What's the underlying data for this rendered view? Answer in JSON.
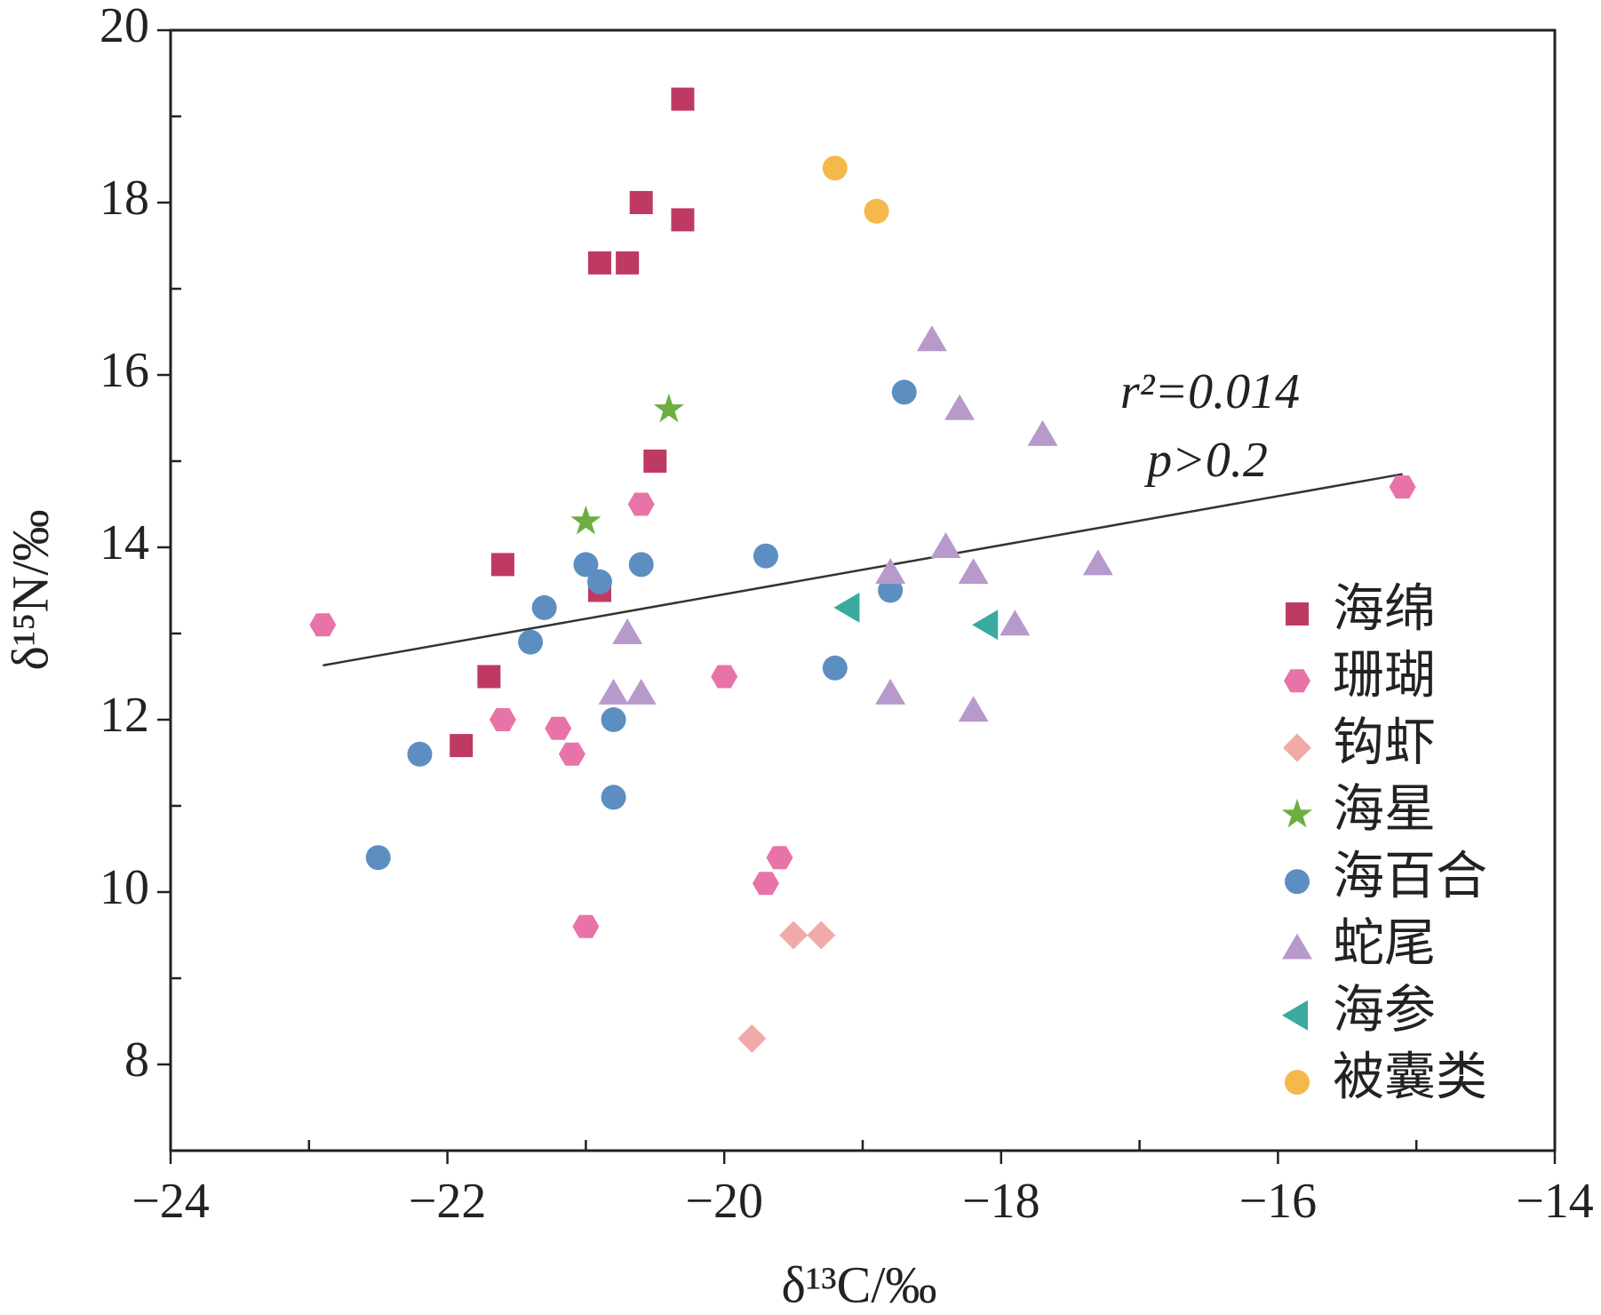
{
  "chart_data": {
    "type": "scatter",
    "xlabel": "δ¹³C/‰",
    "ylabel": "δ¹⁵N/‰",
    "xlim": [
      -24,
      -14
    ],
    "ylim": [
      7,
      20
    ],
    "xticks": [
      {
        "value": -24,
        "label": "−24"
      },
      {
        "value": -22,
        "label": "−22"
      },
      {
        "value": -20,
        "label": "−20"
      },
      {
        "value": -18,
        "label": "−18"
      },
      {
        "value": -16,
        "label": "−16"
      },
      {
        "value": -14,
        "label": "−14"
      }
    ],
    "yticks": [
      8,
      10,
      12,
      14,
      16,
      18,
      20
    ],
    "xminorticks": [
      -23,
      -21,
      -19,
      -17,
      -15
    ],
    "yminorticks": [
      9,
      11,
      13,
      15,
      17,
      19
    ],
    "annotations": [
      "r²=0.014",
      "p>0.2"
    ],
    "trendline": {
      "color": "#333333",
      "x": [
        -22.9,
        -15.1
      ],
      "y": [
        12.63,
        14.85
      ]
    },
    "series": [
      {
        "name": "海绵",
        "color": "#bf3a63",
        "marker": "square",
        "x": [
          -20.3,
          -20.6,
          -20.3,
          -20.9,
          -20.7,
          -20.5,
          -21.6,
          -20.9,
          -21.7,
          -21.9
        ],
        "y": [
          19.2,
          18.0,
          17.8,
          17.3,
          17.3,
          15.0,
          13.8,
          13.5,
          12.5,
          11.7
        ]
      },
      {
        "name": "珊瑚",
        "color": "#e873a8",
        "marker": "hexagon",
        "x": [
          -22.9,
          -20.6,
          -21.6,
          -21.2,
          -21.1,
          -20.0,
          -19.6,
          -19.7,
          -21.0,
          -15.1
        ],
        "y": [
          13.1,
          14.5,
          12.0,
          11.9,
          11.6,
          12.5,
          10.4,
          10.1,
          9.6,
          14.7
        ]
      },
      {
        "name": "钩虾",
        "color": "#f2aaa8",
        "marker": "diamond",
        "x": [
          -19.5,
          -19.3,
          -19.8
        ],
        "y": [
          9.5,
          9.5,
          8.3
        ]
      },
      {
        "name": "海星",
        "color": "#6cae42",
        "marker": "star",
        "x": [
          -20.4,
          -21.0
        ],
        "y": [
          15.6,
          14.3
        ]
      },
      {
        "name": "海百合",
        "color": "#5d8ec2",
        "marker": "circle",
        "x": [
          -18.7,
          -21.0,
          -20.9,
          -20.6,
          -19.7,
          -21.3,
          -21.4,
          -20.8,
          -22.2,
          -20.8,
          -22.5,
          -19.2,
          -18.8
        ],
        "y": [
          15.8,
          13.8,
          13.6,
          13.8,
          13.9,
          13.3,
          12.9,
          12.0,
          11.6,
          11.1,
          10.4,
          12.6,
          13.5
        ]
      },
      {
        "name": "蛇尾",
        "color": "#b79acb",
        "marker": "triangle",
        "x": [
          -18.5,
          -18.3,
          -17.7,
          -18.4,
          -18.8,
          -18.2,
          -17.3,
          -17.9,
          -20.7,
          -20.8,
          -20.6,
          -18.8,
          -18.2
        ],
        "y": [
          16.4,
          15.6,
          15.3,
          14.0,
          13.7,
          13.7,
          13.8,
          13.1,
          13.0,
          12.3,
          12.3,
          12.3,
          12.1
        ]
      },
      {
        "name": "海参",
        "color": "#3aaa9f",
        "marker": "triangle-left",
        "x": [
          -19.1,
          -18.1
        ],
        "y": [
          13.3,
          13.1
        ]
      },
      {
        "name": "被囊类",
        "color": "#f4b94a",
        "marker": "circle",
        "x": [
          -19.2,
          -18.9
        ],
        "y": [
          18.4,
          17.9
        ]
      }
    ]
  }
}
